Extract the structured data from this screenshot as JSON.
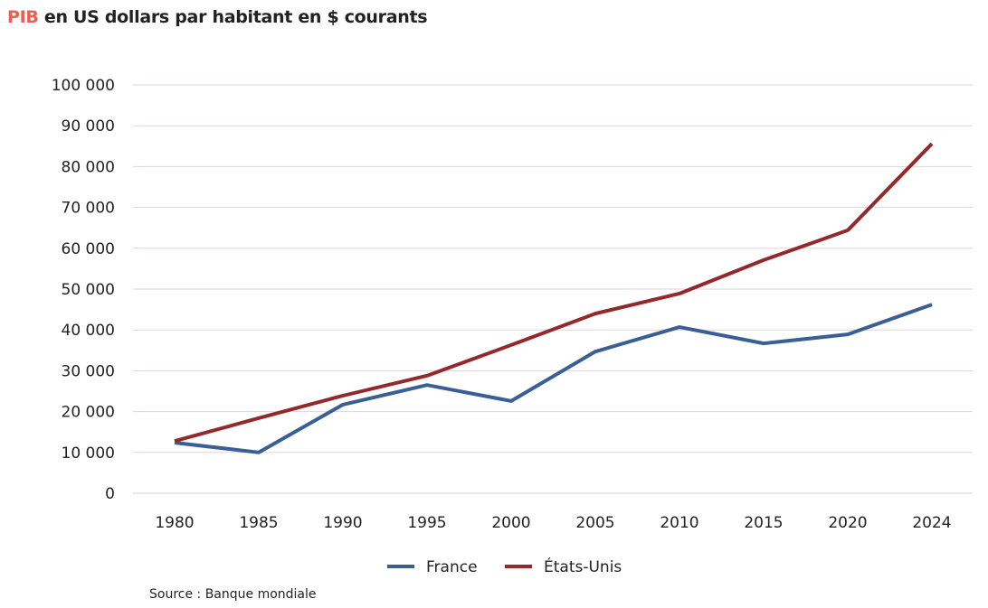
{
  "chart_data": {
    "type": "line",
    "title_highlight": "PIB",
    "title": "en US dollars par habitant en $ courants",
    "source": "Source : Banque mondiale",
    "categories": [
      "1980",
      "1985",
      "1990",
      "1995",
      "2000",
      "2005",
      "2010",
      "2015",
      "2020",
      "2024"
    ],
    "ylim": [
      0,
      100000
    ],
    "yticks": [
      0,
      10000,
      20000,
      30000,
      40000,
      50000,
      60000,
      70000,
      80000,
      90000,
      100000
    ],
    "ytick_labels": [
      "0",
      "10 000",
      "20 000",
      "30 000",
      "40 000",
      "50 000",
      "60 000",
      "70 000",
      "80 000",
      "90 000",
      "100 000"
    ],
    "grid": true,
    "legend_position": "bottom",
    "series": [
      {
        "name": "France",
        "color": "#3a5f95",
        "values": [
          12400,
          10000,
          21700,
          26500,
          22600,
          34700,
          40700,
          36700,
          38900,
          46200
        ]
      },
      {
        "name": "États-Unis",
        "color": "#93292a",
        "values": [
          12800,
          18400,
          23900,
          28800,
          36300,
          44000,
          48900,
          57100,
          64400,
          85600
        ]
      }
    ]
  }
}
